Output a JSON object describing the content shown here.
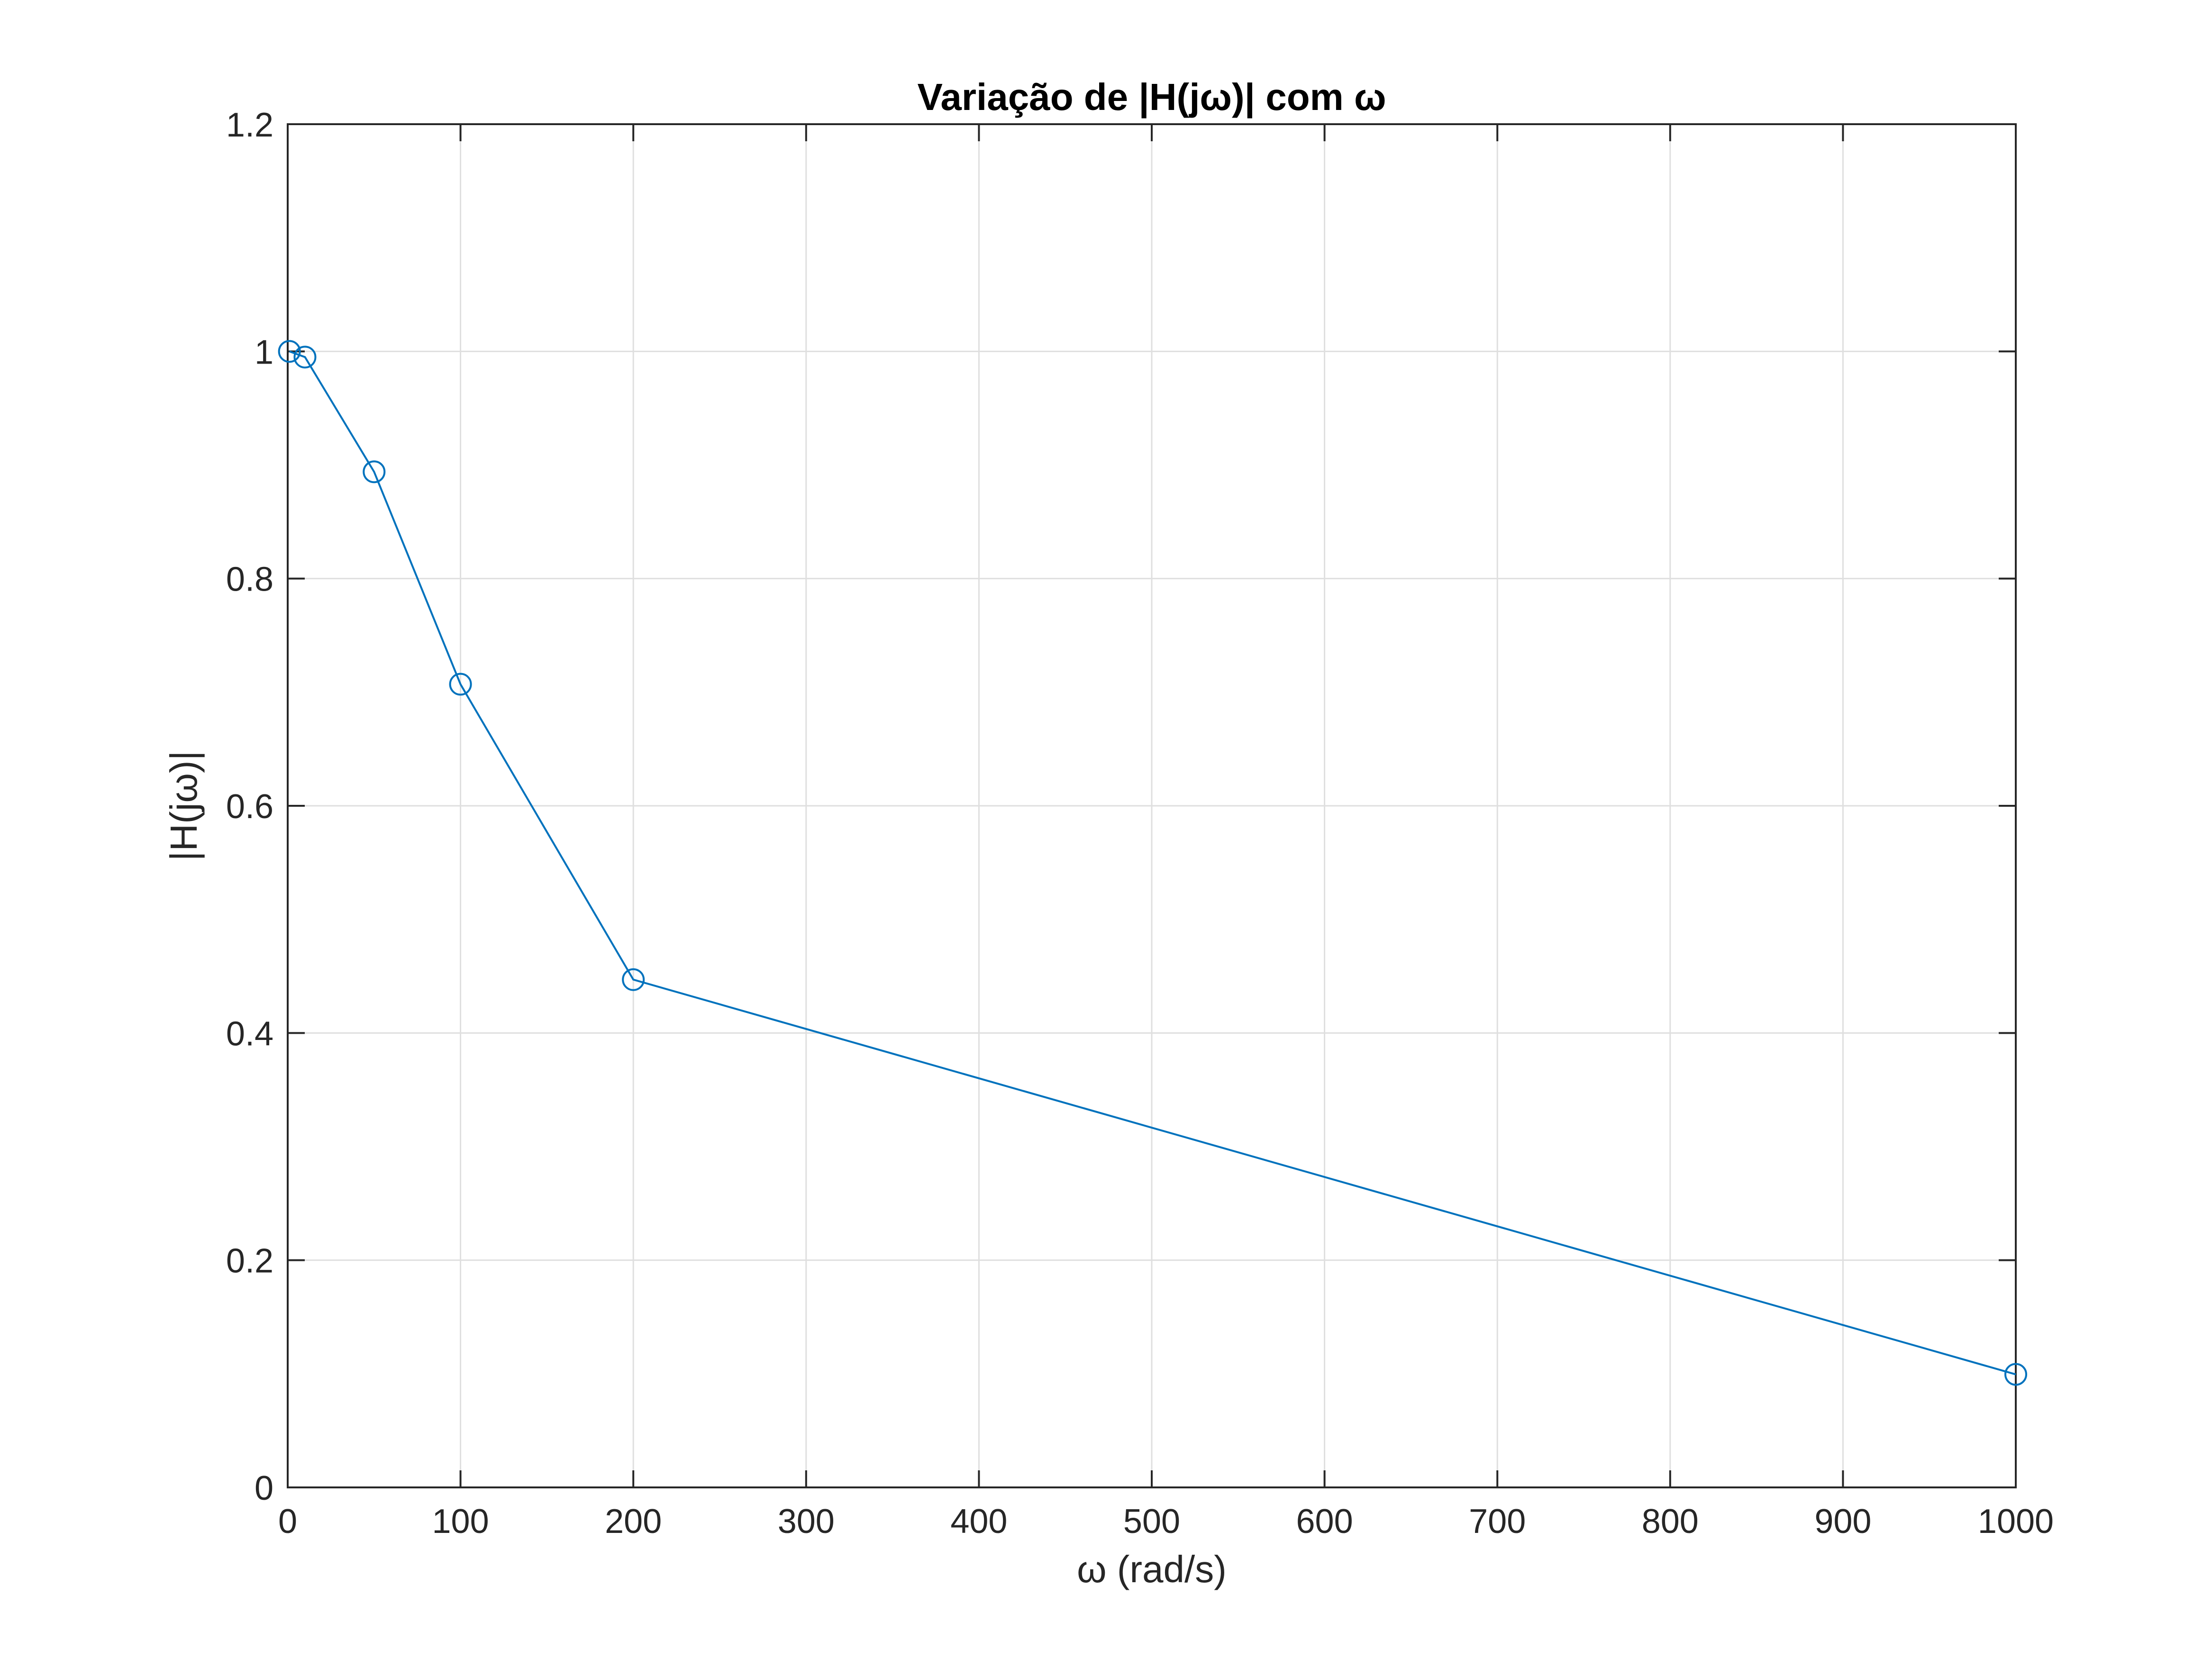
{
  "chart_data": {
    "type": "line",
    "title": "Variação de |H(jω)| com ω",
    "xlabel": "ω (rad/s)",
    "ylabel": "|H(jω)|",
    "x": [
      1,
      10,
      50,
      100,
      200,
      1000
    ],
    "series": [
      {
        "values": [
          1.0,
          0.995,
          0.894,
          0.707,
          0.447,
          0.0995
        ],
        "color": "#0072BD",
        "marker": "circle"
      }
    ],
    "xlim": [
      0,
      1000
    ],
    "ylim": [
      0,
      1.2
    ],
    "xticks": [
      0,
      100,
      200,
      300,
      400,
      500,
      600,
      700,
      800,
      900,
      1000
    ],
    "xtick_labels": [
      "0",
      "100",
      "200",
      "300",
      "400",
      "500",
      "600",
      "700",
      "800",
      "900",
      "1000"
    ],
    "yticks": [
      0,
      0.2,
      0.4,
      0.6,
      0.8,
      1,
      1.2
    ],
    "ytick_labels": [
      "0",
      "0.2",
      "0.4",
      "0.6",
      "0.8",
      "1",
      "1.2"
    ],
    "grid": true,
    "legend": "none"
  }
}
